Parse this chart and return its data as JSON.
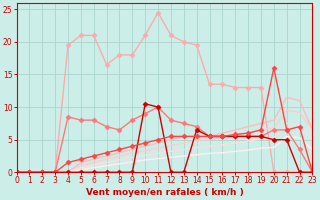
{
  "title": "",
  "xlabel": "Vent moyen/en rafales ( km/h )",
  "ylabel": "",
  "bg_color": "#cceee8",
  "grid_color": "#aad4ce",
  "axis_color": "#cc0000",
  "xlim": [
    0,
    23
  ],
  "ylim": [
    0,
    26
  ],
  "xticks": [
    0,
    1,
    2,
    3,
    4,
    5,
    6,
    7,
    8,
    9,
    10,
    11,
    12,
    13,
    14,
    15,
    16,
    17,
    18,
    19,
    20,
    21,
    22,
    23
  ],
  "yticks": [
    0,
    5,
    10,
    15,
    20,
    25
  ],
  "lines": [
    {
      "x": [
        0,
        1,
        2,
        3,
        4,
        5,
        6,
        7,
        8,
        9,
        10,
        11,
        12,
        13,
        14,
        15,
        16,
        17,
        18,
        19,
        20,
        21,
        22,
        23
      ],
      "y": [
        0,
        0,
        0,
        0,
        19.5,
        21,
        21,
        16.5,
        18,
        18,
        21,
        24.5,
        21,
        20,
        19.5,
        13.5,
        13.5,
        13,
        13,
        13,
        0,
        0,
        0,
        0
      ],
      "color": "#ffaaaa",
      "marker": "D",
      "markersize": 2.5,
      "linewidth": 1.0
    },
    {
      "x": [
        0,
        1,
        2,
        3,
        4,
        5,
        6,
        7,
        8,
        9,
        10,
        11,
        12,
        13,
        14,
        15,
        16,
        17,
        18,
        19,
        20,
        21,
        22,
        23
      ],
      "y": [
        0,
        0,
        0,
        0,
        0,
        1.5,
        2.0,
        2.5,
        3.0,
        3.5,
        4.0,
        4.5,
        5.0,
        5.5,
        5.5,
        5.5,
        6.0,
        6.5,
        7.0,
        7.5,
        8.0,
        11.5,
        11.0,
        6.5
      ],
      "color": "#ffbbbb",
      "marker": null,
      "linewidth": 1.0
    },
    {
      "x": [
        0,
        1,
        2,
        3,
        4,
        5,
        6,
        7,
        8,
        9,
        10,
        11,
        12,
        13,
        14,
        15,
        16,
        17,
        18,
        19,
        20,
        21,
        22,
        23
      ],
      "y": [
        0,
        0,
        0,
        0,
        0,
        1.0,
        1.5,
        2.0,
        2.5,
        3.0,
        3.3,
        3.7,
        4.1,
        4.5,
        4.9,
        5.0,
        5.3,
        5.7,
        6.1,
        6.5,
        6.8,
        9.5,
        9.2,
        6.5
      ],
      "color": "#ffcccc",
      "marker": null,
      "linewidth": 1.0
    },
    {
      "x": [
        0,
        1,
        2,
        3,
        4,
        5,
        6,
        7,
        8,
        9,
        10,
        11,
        12,
        13,
        14,
        15,
        16,
        17,
        18,
        19,
        20,
        21,
        22,
        23
      ],
      "y": [
        0,
        0,
        0,
        0,
        0,
        0.7,
        1.1,
        1.5,
        1.9,
        2.3,
        2.6,
        2.9,
        3.2,
        3.5,
        3.8,
        4.0,
        4.2,
        4.5,
        4.8,
        5.1,
        5.3,
        7.5,
        7.2,
        5.0
      ],
      "color": "#ffdddd",
      "marker": null,
      "linewidth": 1.0
    },
    {
      "x": [
        0,
        1,
        2,
        3,
        4,
        5,
        6,
        7,
        8,
        9,
        10,
        11,
        12,
        13,
        14,
        15,
        16,
        17,
        18,
        19,
        20,
        21,
        22,
        23
      ],
      "y": [
        0,
        0,
        0,
        0,
        0,
        0.4,
        0.7,
        1.0,
        1.3,
        1.6,
        1.9,
        2.1,
        2.3,
        2.5,
        2.7,
        2.9,
        3.0,
        3.2,
        3.4,
        3.7,
        3.8,
        5.5,
        5.3,
        3.5
      ],
      "color": "#ffeeee",
      "marker": null,
      "linewidth": 1.0
    },
    {
      "x": [
        0,
        1,
        2,
        3,
        4,
        5,
        6,
        7,
        8,
        9,
        10,
        11,
        12,
        13,
        14,
        15,
        16,
        17,
        18,
        19,
        20,
        21,
        22,
        23
      ],
      "y": [
        0,
        0,
        0,
        0,
        8.5,
        8,
        8,
        7,
        6.5,
        8,
        9,
        10,
        8,
        7.5,
        7,
        5.5,
        5.5,
        5.5,
        5.5,
        5.5,
        6.5,
        6.5,
        3.5,
        0
      ],
      "color": "#ff7777",
      "marker": "D",
      "markersize": 2.5,
      "linewidth": 1.0
    },
    {
      "x": [
        0,
        1,
        2,
        3,
        4,
        5,
        6,
        7,
        8,
        9,
        10,
        11,
        12,
        13,
        14,
        15,
        16,
        17,
        18,
        19,
        20,
        21,
        22,
        23
      ],
      "y": [
        0,
        0,
        0,
        0,
        0,
        0,
        0,
        0,
        0,
        0,
        10.5,
        10,
        0,
        0,
        6.5,
        5.5,
        5.5,
        5.5,
        5.5,
        5.5,
        5.0,
        5.0,
        0,
        0
      ],
      "color": "#cc0000",
      "marker": "D",
      "markersize": 2.5,
      "linewidth": 1.0
    },
    {
      "x": [
        0,
        1,
        2,
        3,
        4,
        5,
        6,
        7,
        8,
        9,
        10,
        11,
        12,
        13,
        14,
        15,
        16,
        17,
        18,
        19,
        20,
        21,
        22,
        23
      ],
      "y": [
        0,
        0,
        0,
        0,
        1.5,
        2.0,
        2.5,
        3.0,
        3.5,
        4.0,
        4.5,
        5.0,
        5.5,
        5.5,
        5.5,
        5.5,
        5.5,
        5.8,
        6.0,
        6.5,
        16,
        6.5,
        7,
        0
      ],
      "color": "#ff4444",
      "marker": "D",
      "markersize": 2.5,
      "linewidth": 1.0
    }
  ]
}
